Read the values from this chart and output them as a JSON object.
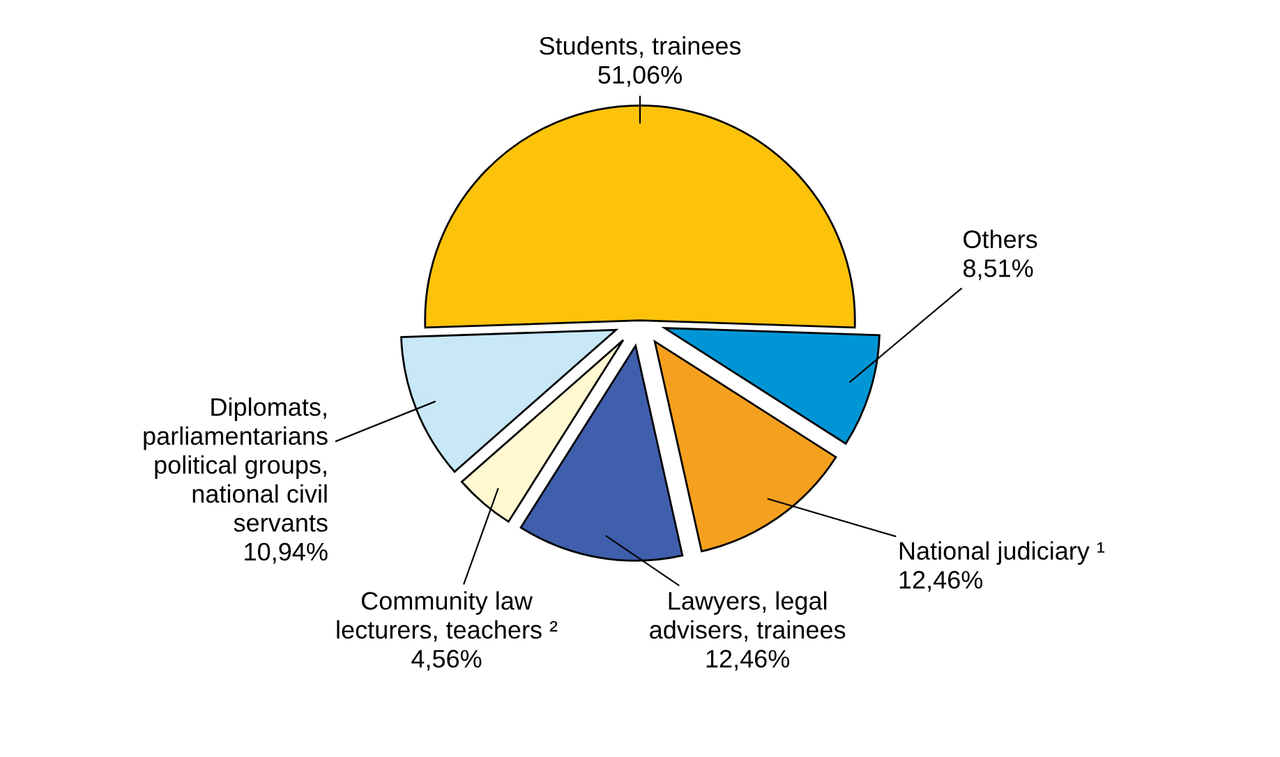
{
  "chart_data": {
    "type": "pie",
    "categories": [
      "Students, trainees",
      "Others",
      "National judiciary ¹",
      "Lawyers, legal\nadvisers, trainees",
      "Community law\nlecturers, teachers ²",
      "Diplomats,\nparliamentarians\npolitical groups,\nnational civil\nservants"
    ],
    "values": [
      51.06,
      8.51,
      12.46,
      12.46,
      4.56,
      10.94
    ],
    "value_labels": [
      "51,06%",
      "8,51%",
      "12,46%",
      "12,46%",
      "4,56%",
      "10,94%"
    ],
    "colors": [
      "#fcc30a",
      "#0096d6",
      "#f5a01e",
      "#3f5fad",
      "#fff8d0",
      "#c8e8f8"
    ]
  }
}
